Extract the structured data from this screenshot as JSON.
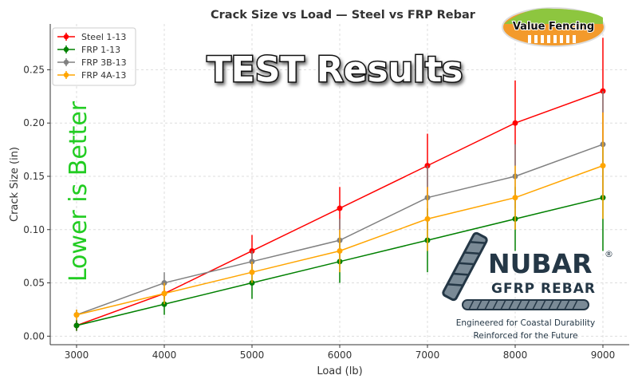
{
  "chart_data": {
    "type": "line",
    "title": "Crack Size vs Load — Steel vs FRP Rebar",
    "xlabel": "Load (lb)",
    "ylabel": "Crack Size (in)",
    "x": [
      3000,
      4000,
      5000,
      6000,
      7000,
      8000,
      9000
    ],
    "xticks": [
      "3000",
      "4000",
      "5000",
      "6000",
      "7000",
      "8000",
      "9000"
    ],
    "yticks": [
      "0.00",
      "0.05",
      "0.10",
      "0.15",
      "0.20",
      "0.25"
    ],
    "xlim": [
      2700,
      9300
    ],
    "ylim": [
      -0.008,
      0.293
    ],
    "grid": true,
    "legend_position": "top-left",
    "series": [
      {
        "name": "Steel 1-13",
        "color": "#ff0000",
        "values": [
          0.01,
          0.04,
          0.08,
          0.12,
          0.16,
          0.2,
          0.23
        ],
        "errors": [
          0.005,
          0.005,
          0.015,
          0.02,
          0.03,
          0.04,
          0.05
        ]
      },
      {
        "name": "FRP 1-13",
        "color": "#008000",
        "values": [
          0.01,
          0.03,
          0.05,
          0.07,
          0.09,
          0.11,
          0.13
        ],
        "errors": [
          0.005,
          0.01,
          0.015,
          0.02,
          0.03,
          0.03,
          0.05
        ]
      },
      {
        "name": "FRP 3B-13",
        "color": "#808080",
        "values": [
          0.02,
          0.05,
          0.07,
          0.09,
          0.13,
          0.15,
          0.18
        ],
        "errors": [
          0.005,
          0.01,
          0.01,
          0.02,
          0.03,
          0.03,
          0.05
        ]
      },
      {
        "name": "FRP 4A-13",
        "color": "#ffa500",
        "values": [
          0.02,
          0.04,
          0.06,
          0.08,
          0.11,
          0.13,
          0.16
        ],
        "errors": [
          0.005,
          0.01,
          0.01,
          0.02,
          0.03,
          0.03,
          0.05
        ]
      }
    ],
    "annotations": {
      "headline": "TEST Results",
      "side_note": "Lower is Better"
    }
  },
  "logos": {
    "value_fencing": "Value Fencing",
    "nubar": {
      "name": "NUBAR",
      "reg": "®",
      "subtitle": "GFRP REBAR",
      "tagline1": "Engineered for Coastal Durability",
      "tagline2": "Reinforced for the Future"
    }
  }
}
